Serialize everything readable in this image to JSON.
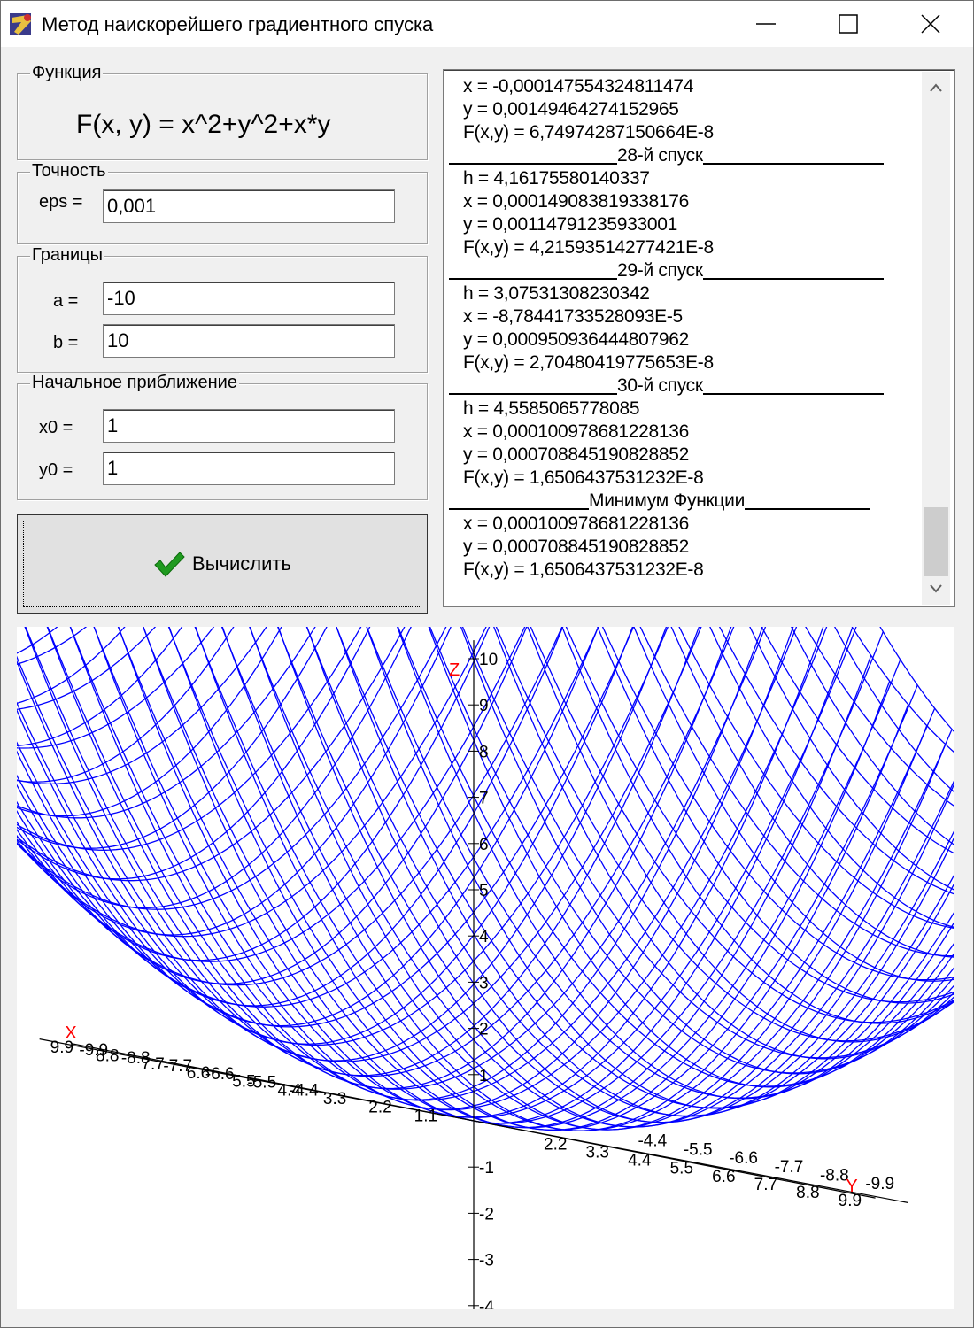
{
  "window": {
    "title": "Метод наискорейшего градиентного спуска",
    "icon": "delphi-app-icon",
    "controls": [
      "minimize-icon",
      "maximize-icon",
      "close-icon"
    ]
  },
  "function_group": {
    "title": "Функция",
    "formula": "F(x, y) = x^2+y^2+x*y"
  },
  "precision_group": {
    "title": "Точность",
    "eps_label": "eps =",
    "eps_value": "0,001"
  },
  "bounds_group": {
    "title": "Границы",
    "a_label": "a =",
    "a_value": "-10",
    "b_label": "b =",
    "b_value": "10"
  },
  "initial_group": {
    "title": "Начальное приближение",
    "x0_label": "x0 =",
    "x0_value": "1",
    "y0_label": "y0 =",
    "y0_value": "1"
  },
  "calc_button": {
    "label": "Вычислить",
    "icon": "checkmark-icon",
    "icon_color": "#1f9a1f"
  },
  "memo": {
    "lines": [
      {
        "type": "data",
        "text": "x = -0,000147554324811474"
      },
      {
        "type": "data",
        "text": "y = 0,00149464274152965"
      },
      {
        "type": "data",
        "text": "F(x,y) = 6,74974287150664E-8"
      },
      {
        "type": "sep",
        "text": "28-й спуск"
      },
      {
        "type": "data",
        "text": "h = 4,16175580140337"
      },
      {
        "type": "data",
        "text": "x = 0,000149083819338176"
      },
      {
        "type": "data",
        "text": "y = 0,00114791235933001"
      },
      {
        "type": "data",
        "text": "F(x,y) = 4,21593514277421E-8"
      },
      {
        "type": "sep",
        "text": "29-й спуск"
      },
      {
        "type": "data",
        "text": "h = 3,07531308230342"
      },
      {
        "type": "data",
        "text": "x = -8,78441733528093E-5"
      },
      {
        "type": "data",
        "text": "y = 0,000950936444807962"
      },
      {
        "type": "data",
        "text": "F(x,y) = 2,70480419775653E-8"
      },
      {
        "type": "sep",
        "text": "30-й спуск"
      },
      {
        "type": "data",
        "text": "h = 4,5585065778085"
      },
      {
        "type": "data",
        "text": "x = 0,000100978681228136"
      },
      {
        "type": "data",
        "text": "y = 0,000708845190828852"
      },
      {
        "type": "data",
        "text": "F(x,y) = 1,6506437531232E-8"
      },
      {
        "type": "sep",
        "text": "Минимум Функции"
      },
      {
        "type": "data",
        "text": "x = 0,000100978681228136"
      },
      {
        "type": "data",
        "text": "y = 0,000708845190828852"
      },
      {
        "type": "data",
        "text": "F(x,y) = 1,6506437531232E-8"
      }
    ]
  },
  "plot": {
    "z_axis_label": "Z",
    "x_axis_label": "X",
    "y_axis_label": "Y",
    "z_ticks": [
      "10",
      "9",
      "8",
      "7",
      "6",
      "5",
      "4",
      "3",
      "2",
      "1",
      "-1",
      "-2",
      "-3",
      "-4"
    ],
    "x_ticks_upper": [
      "-9.9",
      "-8.8",
      "-7.7",
      "-6.6",
      "-5.5",
      "-4.4"
    ],
    "x_ticks_lower": [
      "9.9",
      "8.8",
      "7.7",
      "6.6",
      "5.5",
      "4.4",
      "3.3",
      "2.2",
      "1.1"
    ],
    "y_ticks_lower": [
      "2.2",
      "3.3",
      "4.4",
      "5.5",
      "6.6",
      "7.7",
      "8.8",
      "9.9"
    ],
    "y_ticks_upper": [
      "-9.9",
      "-8.8",
      "-7.7",
      "-6.6",
      "-5.5",
      "-4.4"
    ],
    "mesh_color": "#0000ff",
    "axis_color": "#000000",
    "axis_label_color": "#ff0000"
  }
}
